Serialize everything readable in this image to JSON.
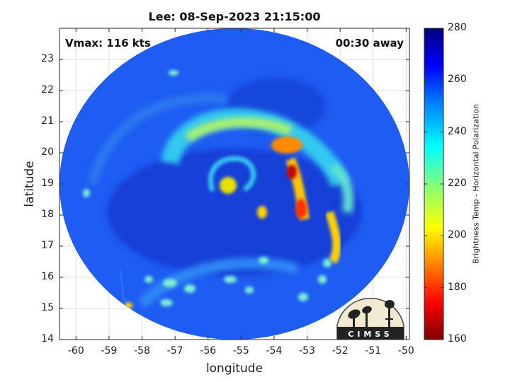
{
  "figure": {
    "title": "Lee: 08-Sep-2023 21:15:00",
    "vmax_text": "Vmax: 116 kts",
    "time_text": "00:30 away",
    "xlabel": "longitude",
    "ylabel": "latitude",
    "colorbar_label": "Brightness Temp - Horizontal Polarization",
    "logo_text": "CIMSS"
  },
  "chart_data": {
    "type": "heatmap",
    "title": "Lee: 08-Sep-2023 21:15:00",
    "xlabel": "longitude",
    "ylabel": "latitude",
    "xlim": [
      -60.5,
      -49.9
    ],
    "ylim": [
      14,
      24
    ],
    "xticks": [
      "-60",
      "-59",
      "-58",
      "-57",
      "-56",
      "-55",
      "-54",
      "-53",
      "-52",
      "-51",
      "-50"
    ],
    "yticks": [
      "14",
      "15",
      "16",
      "17",
      "18",
      "19",
      "20",
      "21",
      "22",
      "23"
    ],
    "grid": true,
    "colorbar": {
      "label": "Brightness Temp - Horizontal Polarization",
      "range": [
        160,
        280
      ],
      "ticks": [
        "160",
        "180",
        "200",
        "220",
        "240",
        "260",
        "280"
      ],
      "colormap": "jet"
    },
    "storm_center": {
      "lon": -55.4,
      "lat": 18.9
    },
    "swath": {
      "center_lon": -55.2,
      "center_lat": 18.9,
      "radius_lon": 5.3,
      "radius_lat": 5.0
    },
    "features": [
      {
        "name": "eye",
        "lon": -55.4,
        "lat": 18.9,
        "value": 210
      },
      {
        "name": "eyewall-north",
        "lon": -54.8,
        "lat": 20.8,
        "value": 220
      },
      {
        "name": "eyewall-northeast",
        "lon": -53.7,
        "lat": 20.2,
        "value": 185
      },
      {
        "name": "core-max",
        "lon": -53.6,
        "lat": 19.3,
        "value": 165
      },
      {
        "name": "rainband-east",
        "lon": -53.2,
        "lat": 18.0,
        "value": 180
      },
      {
        "name": "rainband-southeast",
        "lon": -52.3,
        "lat": 17.2,
        "value": 195
      },
      {
        "name": "rainband-south",
        "lon": -55.0,
        "lat": 16.5,
        "value": 215
      },
      {
        "name": "cell-far-south",
        "lon": -58.4,
        "lat": 15.1,
        "value": 205
      },
      {
        "name": "cell-west",
        "lon": -60.0,
        "lat": 18.6,
        "value": 225
      }
    ],
    "background_value": 262
  },
  "colors": {
    "background": "#1f5ff0",
    "deep": "#0a2fd0",
    "eyewall": "#ff4a00",
    "core": "#c00000",
    "band": "#ffe000"
  }
}
